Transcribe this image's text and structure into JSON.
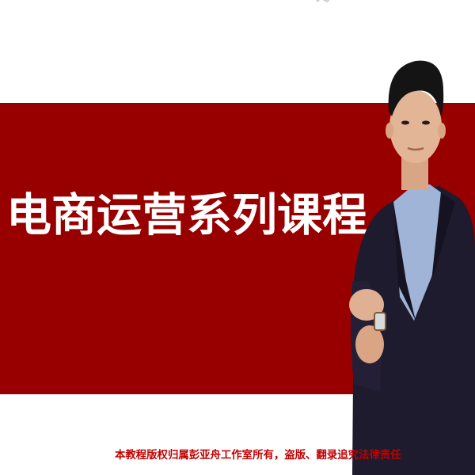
{
  "banner": {
    "title": "电商运营系列课程",
    "background_color": "#980000"
  },
  "footer": {
    "copyright": "本教程版权归属彭亚舟工作室所有，盗版、翻录追究法律责任",
    "color": "#c00000"
  }
}
